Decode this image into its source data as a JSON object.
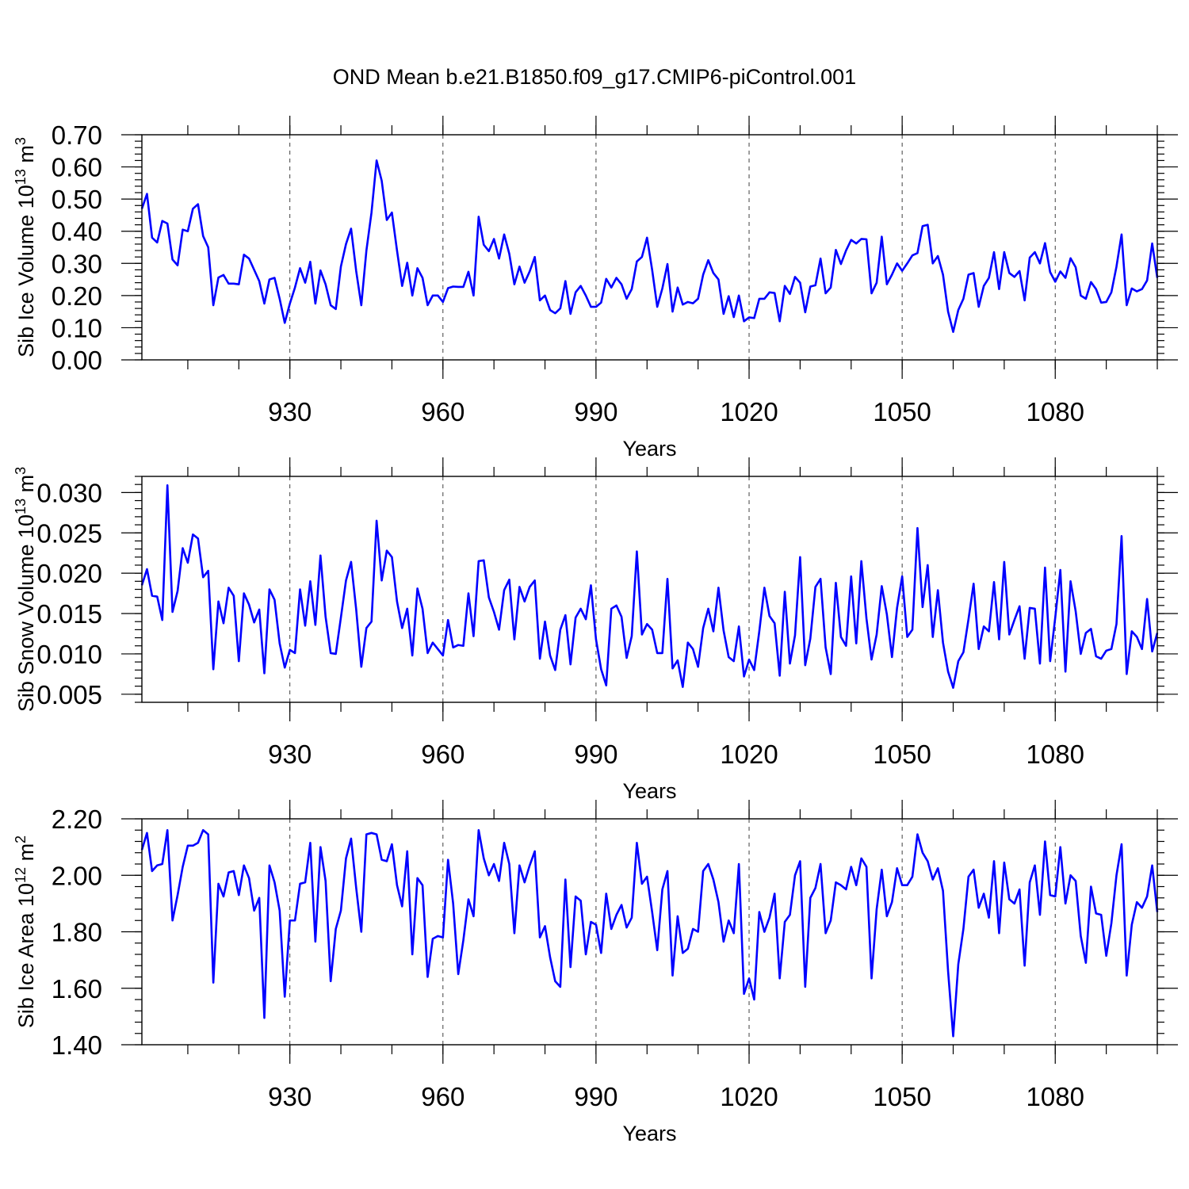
{
  "title": "OND Mean b.e21.B1850.f09_g17.CMIP6-piControl.001",
  "colors": {
    "series": "#0000ff",
    "axis": "#000000"
  },
  "chart_data": [
    {
      "type": "line",
      "name": "sib-ice-volume",
      "ylabel": "Sib Ice Volume 10",
      "ylabel_exp": "13",
      "ylabel_unit": " m",
      "ylabel_unit_exp": "3",
      "xlabel": "Years",
      "xlim": [
        901,
        1100
      ],
      "ylim": [
        0.0,
        0.7
      ],
      "yticks": [
        0.0,
        0.1,
        0.2,
        0.3,
        0.4,
        0.5,
        0.6,
        0.7
      ],
      "ytick_labels": [
        "0.00",
        "0.10",
        "0.20",
        "0.30",
        "0.40",
        "0.50",
        "0.60",
        "0.70"
      ],
      "yminor_step": 0.02,
      "xticks": [
        930,
        960,
        990,
        1020,
        1050,
        1080
      ],
      "xtick_labels": [
        "930",
        "960",
        "990",
        "1020",
        "1050",
        "1080"
      ],
      "xminor_step": 10,
      "x_start": 901,
      "values": [
        0.47,
        0.516,
        0.38,
        0.365,
        0.432,
        0.424,
        0.312,
        0.294,
        0.405,
        0.4,
        0.47,
        0.484,
        0.385,
        0.35,
        0.17,
        0.256,
        0.264,
        0.237,
        0.237,
        0.235,
        0.327,
        0.315,
        0.28,
        0.245,
        0.175,
        0.25,
        0.255,
        0.19,
        0.115,
        0.175,
        0.225,
        0.285,
        0.24,
        0.305,
        0.175,
        0.278,
        0.235,
        0.17,
        0.158,
        0.29,
        0.36,
        0.408,
        0.276,
        0.17,
        0.34,
        0.458,
        0.62,
        0.557,
        0.435,
        0.458,
        0.34,
        0.23,
        0.302,
        0.2,
        0.285,
        0.255,
        0.17,
        0.2,
        0.2,
        0.18,
        0.223,
        0.228,
        0.227,
        0.227,
        0.274,
        0.2,
        0.445,
        0.358,
        0.338,
        0.376,
        0.315,
        0.39,
        0.33,
        0.235,
        0.29,
        0.24,
        0.275,
        0.32,
        0.185,
        0.2,
        0.155,
        0.145,
        0.16,
        0.245,
        0.143,
        0.21,
        0.23,
        0.2,
        0.165,
        0.165,
        0.178,
        0.252,
        0.225,
        0.255,
        0.235,
        0.19,
        0.22,
        0.306,
        0.32,
        0.38,
        0.28,
        0.165,
        0.222,
        0.298,
        0.15,
        0.225,
        0.172,
        0.18,
        0.176,
        0.19,
        0.265,
        0.31,
        0.27,
        0.25,
        0.143,
        0.198,
        0.133,
        0.2,
        0.12,
        0.132,
        0.13,
        0.19,
        0.19,
        0.21,
        0.208,
        0.12,
        0.23,
        0.205,
        0.258,
        0.24,
        0.148,
        0.228,
        0.232,
        0.315,
        0.207,
        0.225,
        0.342,
        0.298,
        0.34,
        0.373,
        0.362,
        0.376,
        0.375,
        0.207,
        0.24,
        0.383,
        0.235,
        0.265,
        0.3,
        0.277,
        0.3,
        0.325,
        0.332,
        0.416,
        0.42,
        0.3,
        0.323,
        0.265,
        0.15,
        0.087,
        0.155,
        0.19,
        0.265,
        0.27,
        0.165,
        0.23,
        0.255,
        0.335,
        0.22,
        0.335,
        0.27,
        0.258,
        0.276,
        0.185,
        0.318,
        0.335,
        0.3,
        0.363,
        0.273,
        0.243,
        0.275,
        0.255,
        0.316,
        0.288,
        0.2,
        0.19,
        0.242,
        0.22,
        0.178,
        0.18,
        0.21,
        0.29,
        0.39,
        0.17,
        0.222,
        0.213,
        0.22,
        0.247,
        0.362,
        0.255
      ]
    },
    {
      "type": "line",
      "name": "sib-snow-volume",
      "ylabel": "Sib Snow Volume 10",
      "ylabel_exp": "13",
      "ylabel_unit": " m",
      "ylabel_unit_exp": "3",
      "xlabel": "Years",
      "xlim": [
        901,
        1100
      ],
      "ylim": [
        0.004,
        0.032
      ],
      "yticks": [
        0.005,
        0.01,
        0.015,
        0.02,
        0.025,
        0.03
      ],
      "ytick_labels": [
        "0.005",
        "0.010",
        "0.015",
        "0.020",
        "0.025",
        "0.030"
      ],
      "yminor_step": 0.001,
      "xticks": [
        930,
        960,
        990,
        1020,
        1050,
        1080
      ],
      "xtick_labels": [
        "930",
        "960",
        "990",
        "1020",
        "1050",
        "1080"
      ],
      "xminor_step": 10,
      "x_start": 901,
      "values": [
        0.0185,
        0.0205,
        0.0172,
        0.0171,
        0.0142,
        0.0309,
        0.0152,
        0.0178,
        0.0231,
        0.0213,
        0.0248,
        0.0243,
        0.0195,
        0.0203,
        0.0081,
        0.0165,
        0.0138,
        0.0182,
        0.0172,
        0.0091,
        0.0175,
        0.0161,
        0.0139,
        0.0155,
        0.0076,
        0.018,
        0.0167,
        0.0113,
        0.0083,
        0.0105,
        0.0101,
        0.018,
        0.0135,
        0.019,
        0.0136,
        0.0222,
        0.0146,
        0.0101,
        0.01,
        0.0145,
        0.0191,
        0.0214,
        0.0155,
        0.0084,
        0.0132,
        0.014,
        0.0265,
        0.0191,
        0.0228,
        0.022,
        0.0165,
        0.0132,
        0.0156,
        0.0098,
        0.0181,
        0.0156,
        0.0101,
        0.0114,
        0.0106,
        0.0098,
        0.0142,
        0.0108,
        0.0111,
        0.011,
        0.0175,
        0.0122,
        0.0215,
        0.0216,
        0.017,
        0.0152,
        0.013,
        0.0179,
        0.0192,
        0.0118,
        0.0183,
        0.0165,
        0.0183,
        0.0191,
        0.0094,
        0.014,
        0.0098,
        0.008,
        0.013,
        0.0148,
        0.0087,
        0.0145,
        0.0156,
        0.0143,
        0.0185,
        0.0118,
        0.0081,
        0.0061,
        0.0156,
        0.016,
        0.0146,
        0.0095,
        0.0122,
        0.0227,
        0.0124,
        0.0137,
        0.013,
        0.0101,
        0.0101,
        0.0193,
        0.0082,
        0.0092,
        0.0059,
        0.0114,
        0.0106,
        0.0084,
        0.0132,
        0.0156,
        0.0128,
        0.0182,
        0.0129,
        0.0096,
        0.0091,
        0.0134,
        0.0072,
        0.0093,
        0.008,
        0.0128,
        0.0182,
        0.0147,
        0.0138,
        0.0073,
        0.0177,
        0.0088,
        0.0123,
        0.022,
        0.0086,
        0.0119,
        0.0183,
        0.0193,
        0.0108,
        0.0075,
        0.0188,
        0.0121,
        0.011,
        0.0196,
        0.0113,
        0.0215,
        0.0144,
        0.0093,
        0.0124,
        0.0184,
        0.0149,
        0.0096,
        0.0157,
        0.0196,
        0.0121,
        0.013,
        0.0256,
        0.0158,
        0.021,
        0.0121,
        0.0179,
        0.0114,
        0.0078,
        0.0058,
        0.0091,
        0.0102,
        0.0143,
        0.0187,
        0.0106,
        0.0134,
        0.0128,
        0.0189,
        0.0118,
        0.0214,
        0.0124,
        0.0142,
        0.0159,
        0.0094,
        0.0157,
        0.0156,
        0.0088,
        0.0207,
        0.0091,
        0.0145,
        0.0204,
        0.0078,
        0.019,
        0.0153,
        0.01,
        0.0126,
        0.0131,
        0.0097,
        0.0094,
        0.0104,
        0.0106,
        0.0137,
        0.0246,
        0.0075,
        0.0128,
        0.0121,
        0.0106,
        0.0168,
        0.0103,
        0.0126
      ]
    },
    {
      "type": "line",
      "name": "sib-ice-area",
      "ylabel": "Sib Ice Area 10",
      "ylabel_exp": "12",
      "ylabel_unit": " m",
      "ylabel_unit_exp": "2",
      "xlabel": "Years",
      "xlim": [
        901,
        1100
      ],
      "ylim": [
        1.4,
        2.2
      ],
      "yticks": [
        1.4,
        1.6,
        1.8,
        2.0,
        2.2
      ],
      "ytick_labels": [
        "1.40",
        "1.60",
        "1.80",
        "2.00",
        "2.20"
      ],
      "yminor_step": 0.04,
      "xticks": [
        930,
        960,
        990,
        1020,
        1050,
        1080
      ],
      "xtick_labels": [
        "930",
        "960",
        "990",
        "1020",
        "1050",
        "1080"
      ],
      "xminor_step": 10,
      "x_start": 901,
      "values": [
        2.09,
        2.15,
        2.015,
        2.035,
        2.04,
        2.16,
        1.84,
        1.93,
        2.03,
        2.105,
        2.105,
        2.115,
        2.16,
        2.145,
        1.62,
        1.97,
        1.925,
        2.01,
        2.015,
        1.93,
        2.035,
        1.99,
        1.875,
        1.92,
        1.495,
        2.035,
        1.975,
        1.875,
        1.57,
        1.84,
        1.84,
        1.97,
        1.975,
        2.115,
        1.765,
        2.1,
        1.98,
        1.625,
        1.81,
        1.875,
        2.06,
        2.13,
        1.955,
        1.8,
        2.145,
        2.15,
        2.145,
        2.055,
        2.05,
        2.11,
        1.965,
        1.89,
        2.085,
        1.72,
        1.99,
        1.965,
        1.64,
        1.775,
        1.785,
        1.78,
        2.055,
        1.9,
        1.65,
        1.77,
        1.915,
        1.855,
        2.16,
        2.06,
        2.0,
        2.04,
        1.98,
        2.115,
        2.04,
        1.795,
        2.035,
        1.975,
        2.035,
        2.085,
        1.78,
        1.82,
        1.71,
        1.625,
        1.605,
        1.985,
        1.675,
        1.925,
        1.91,
        1.72,
        1.835,
        1.825,
        1.725,
        1.935,
        1.81,
        1.86,
        1.895,
        1.815,
        1.85,
        2.115,
        1.97,
        1.995,
        1.87,
        1.735,
        1.95,
        2.015,
        1.645,
        1.855,
        1.725,
        1.74,
        1.81,
        1.8,
        2.015,
        2.04,
        1.985,
        1.905,
        1.765,
        1.84,
        1.795,
        2.04,
        1.58,
        1.635,
        1.56,
        1.87,
        1.8,
        1.85,
        1.935,
        1.635,
        1.835,
        1.86,
        2.0,
        2.05,
        1.605,
        1.92,
        1.955,
        2.04,
        1.795,
        1.84,
        1.975,
        1.965,
        1.95,
        2.03,
        1.965,
        2.06,
        2.03,
        1.635,
        1.88,
        2.02,
        1.855,
        1.905,
        2.025,
        1.965,
        1.965,
        1.995,
        2.145,
        2.08,
        2.05,
        1.985,
        2.025,
        1.945,
        1.66,
        1.43,
        1.685,
        1.81,
        1.995,
        2.02,
        1.885,
        1.935,
        1.85,
        2.05,
        1.795,
        2.045,
        1.915,
        1.9,
        1.95,
        1.68,
        1.975,
        2.035,
        1.86,
        2.12,
        1.93,
        1.925,
        2.1,
        1.9,
        2.0,
        1.98,
        1.785,
        1.69,
        1.96,
        1.865,
        1.86,
        1.715,
        1.83,
        2.0,
        2.11,
        1.645,
        1.825,
        1.905,
        1.885,
        1.925,
        2.035,
        1.87
      ]
    }
  ]
}
